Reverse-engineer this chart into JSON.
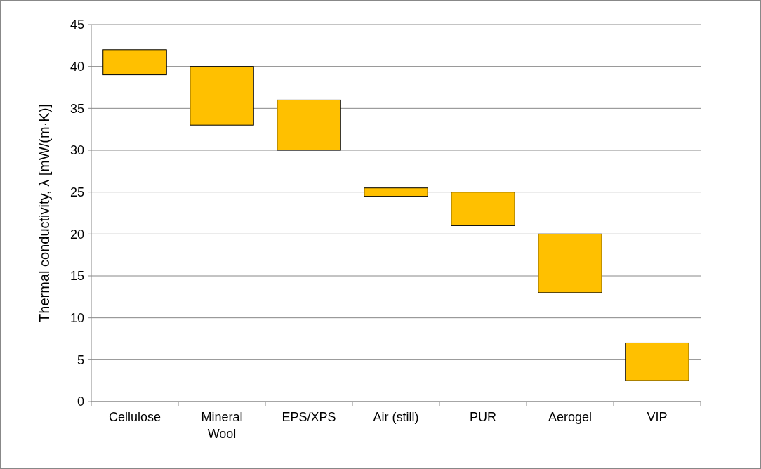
{
  "chart_data": {
    "type": "bar",
    "ylabel": "Thermal conductivity, λ [mW/(m·K)]",
    "categories": [
      "Cellulose",
      "Mineral Wool",
      "EPS/XPS",
      "Air (still)",
      "PUR",
      "Aerogel",
      "VIP"
    ],
    "base": [
      39,
      33,
      30,
      24.5,
      21,
      13,
      2.5
    ],
    "values": [
      3,
      7,
      6,
      1,
      4,
      7,
      4.5
    ],
    "color": "#ffc000",
    "ylim": [
      0,
      45
    ],
    "yticks": [
      0,
      5,
      10,
      15,
      20,
      25,
      30,
      35,
      40,
      45
    ],
    "grid": "y"
  }
}
